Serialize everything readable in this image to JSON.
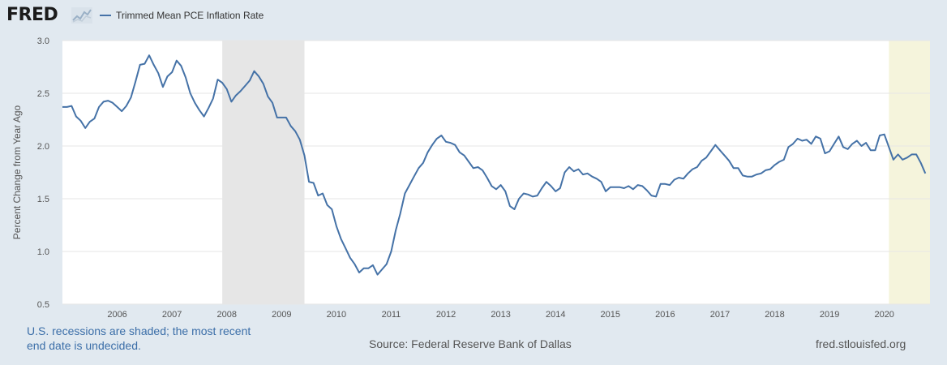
{
  "header": {
    "logo_text": "FRED",
    "legend_label": "Trimmed Mean PCE Inflation Rate"
  },
  "footer": {
    "note": "U.S. recessions are shaded; the most recent end date is undecided.",
    "source": "Source: Federal Reserve Bank of Dallas",
    "url": "fred.stlouisfed.org"
  },
  "chart_data": {
    "type": "line",
    "title": "",
    "ylabel": "Percent Change from Year Ago",
    "xlabel": "",
    "ylim": [
      0.5,
      3.0
    ],
    "xlim": [
      2005.0,
      2020.833
    ],
    "yticks": [
      "0.5",
      "1.0",
      "1.5",
      "2.0",
      "2.5",
      "3.0"
    ],
    "xticks": [
      "2006",
      "2007",
      "2008",
      "2009",
      "2010",
      "2011",
      "2012",
      "2013",
      "2014",
      "2015",
      "2016",
      "2017",
      "2018",
      "2019",
      "2020"
    ],
    "grid": true,
    "legend": "top-left",
    "colors": {
      "line": "#4572a7",
      "recession_shade": "#e6e6e6",
      "recession_shade_open": "#f5f4dc",
      "plot_background": "#ffffff",
      "page_background": "#e1e9f0"
    },
    "recessions": [
      {
        "start": 2007.917,
        "end": 2009.417,
        "open": false
      },
      {
        "start": 2020.083,
        "end": 2020.833,
        "open": true
      }
    ],
    "series": [
      {
        "name": "Trimmed Mean PCE Inflation Rate",
        "start": 2005.0,
        "step": 0.08333,
        "values": [
          2.37,
          2.37,
          2.38,
          2.28,
          2.24,
          2.17,
          2.23,
          2.26,
          2.37,
          2.42,
          2.43,
          2.41,
          2.37,
          2.33,
          2.38,
          2.46,
          2.61,
          2.77,
          2.78,
          2.86,
          2.77,
          2.69,
          2.56,
          2.66,
          2.7,
          2.81,
          2.76,
          2.65,
          2.5,
          2.41,
          2.34,
          2.28,
          2.36,
          2.45,
          2.63,
          2.6,
          2.54,
          2.42,
          2.48,
          2.52,
          2.57,
          2.62,
          2.71,
          2.66,
          2.59,
          2.47,
          2.41,
          2.27,
          2.27,
          2.27,
          2.19,
          2.14,
          2.06,
          1.91,
          1.66,
          1.65,
          1.53,
          1.55,
          1.44,
          1.4,
          1.24,
          1.12,
          1.03,
          0.94,
          0.88,
          0.8,
          0.84,
          0.84,
          0.87,
          0.78,
          0.83,
          0.88,
          1.0,
          1.2,
          1.36,
          1.55,
          1.63,
          1.71,
          1.79,
          1.84,
          1.94,
          2.01,
          2.07,
          2.1,
          2.04,
          2.03,
          2.01,
          1.94,
          1.91,
          1.85,
          1.79,
          1.8,
          1.77,
          1.7,
          1.62,
          1.59,
          1.63,
          1.57,
          1.43,
          1.4,
          1.5,
          1.55,
          1.54,
          1.52,
          1.53,
          1.6,
          1.66,
          1.62,
          1.57,
          1.6,
          1.75,
          1.8,
          1.76,
          1.78,
          1.73,
          1.74,
          1.71,
          1.69,
          1.66,
          1.57,
          1.61,
          1.61,
          1.61,
          1.6,
          1.62,
          1.59,
          1.63,
          1.62,
          1.58,
          1.53,
          1.52,
          1.64,
          1.64,
          1.63,
          1.68,
          1.7,
          1.69,
          1.74,
          1.78,
          1.8,
          1.86,
          1.89,
          1.95,
          2.01,
          1.96,
          1.91,
          1.86,
          1.79,
          1.79,
          1.72,
          1.71,
          1.71,
          1.73,
          1.74,
          1.77,
          1.78,
          1.82,
          1.85,
          1.87,
          1.99,
          2.02,
          2.07,
          2.05,
          2.06,
          2.02,
          2.09,
          2.07,
          1.93,
          1.95,
          2.02,
          2.09,
          1.99,
          1.97,
          2.02,
          2.05,
          2.0,
          2.03,
          1.96,
          1.96,
          2.1,
          2.11,
          1.99,
          1.87,
          1.92,
          1.87,
          1.89,
          1.92,
          1.92,
          1.84,
          1.74
        ]
      }
    ]
  }
}
